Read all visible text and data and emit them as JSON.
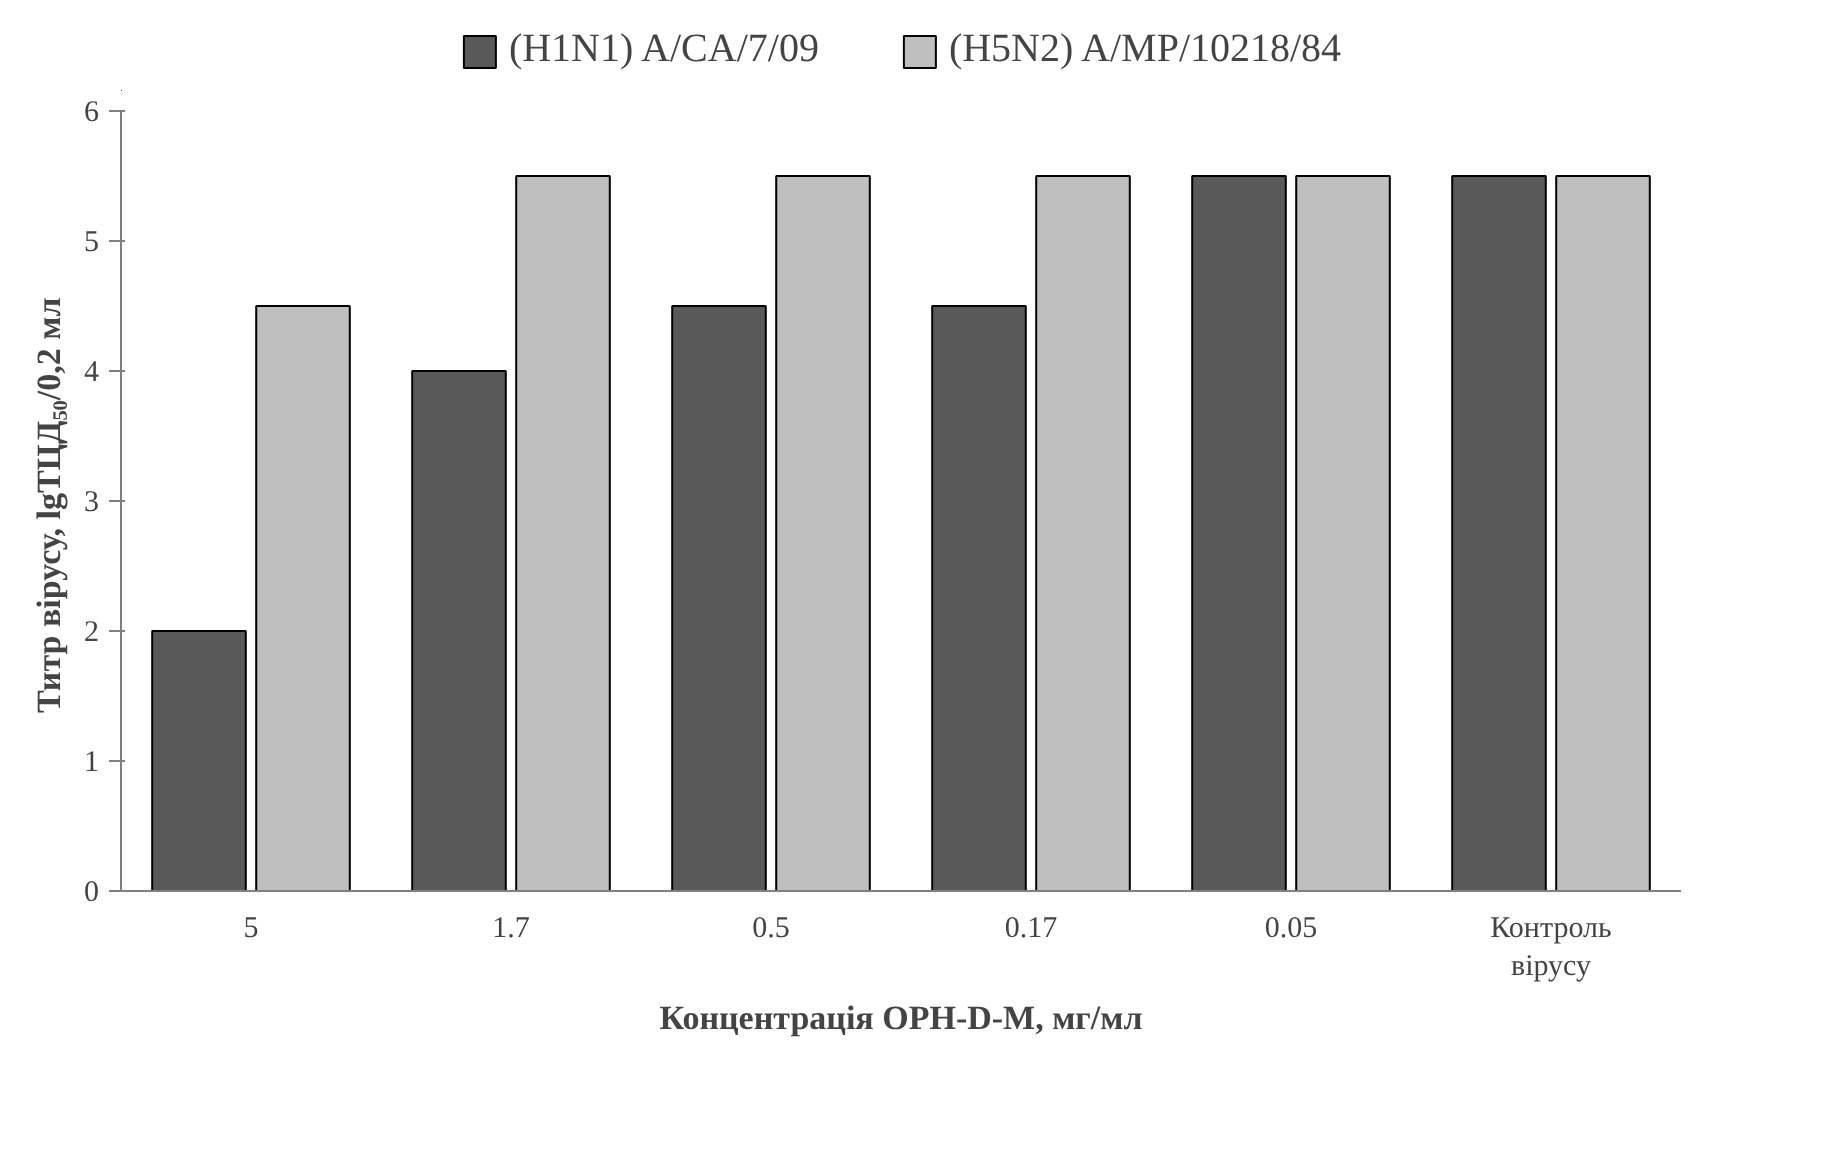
{
  "chart_data": {
    "type": "bar",
    "xlabel": "Концентрація ОРН-D-M, мг/мл",
    "ylabel": "Титр вірусу,  lgТЦД₅₀/0,2 мл",
    "categories": [
      "5",
      "1.7",
      "0.5",
      "0.17",
      "0.05",
      "Контроль\nвірусу"
    ],
    "series": [
      {
        "name": "(H1N1) A/CA/7/09",
        "color": "#595959",
        "values": [
          2,
          4,
          4.5,
          4.5,
          5.5,
          5.5
        ]
      },
      {
        "name": "(H5N2) A/MP/10218/84",
        "color": "#bfbfbf",
        "values": [
          4.5,
          5.5,
          5.5,
          5.5,
          5.5,
          5.5
        ]
      }
    ],
    "ylim": [
      0,
      6
    ],
    "yticks": [
      0,
      1,
      2,
      3,
      4,
      5,
      6
    ],
    "grid": false,
    "legend": "top"
  }
}
